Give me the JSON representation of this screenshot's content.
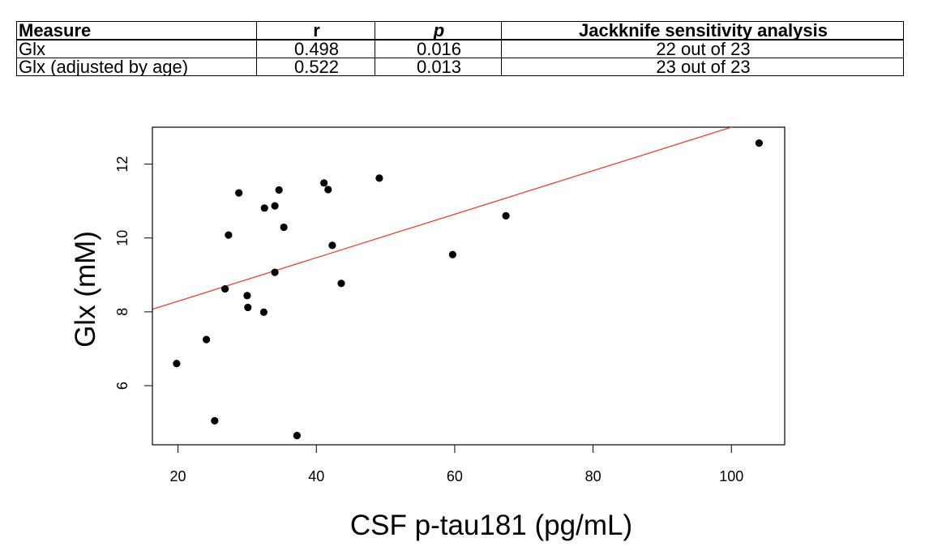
{
  "table": {
    "headers": [
      "Measure",
      "r",
      "p",
      "Jackknife sensitivity analysis"
    ],
    "rows": [
      [
        "Glx",
        "0.498",
        "0.016",
        "22 out of 23"
      ],
      [
        "Glx (adjusted by age)",
        "0.522",
        "0.013",
        "23 out of 23"
      ]
    ]
  },
  "chart_data": {
    "type": "scatter",
    "title": "",
    "xlabel": "CSF p-tau181 (pg/mL)",
    "ylabel": "Glx (mM)",
    "xlim": [
      16.3,
      107.7
    ],
    "ylim": [
      4.4,
      13.0
    ],
    "xticks": [
      20,
      40,
      60,
      80,
      100
    ],
    "yticks": [
      6,
      8,
      10,
      12
    ],
    "point_color": "#000000",
    "fit_line_color": "#e8432c",
    "fit_line": {
      "intercept": 7.11,
      "slope": 0.0589
    },
    "points": [
      {
        "x": 19.8,
        "y": 6.6
      },
      {
        "x": 24.1,
        "y": 7.25
      },
      {
        "x": 25.3,
        "y": 5.05
      },
      {
        "x": 26.8,
        "y": 8.62
      },
      {
        "x": 27.3,
        "y": 10.08
      },
      {
        "x": 28.8,
        "y": 11.22
      },
      {
        "x": 30.0,
        "y": 8.44
      },
      {
        "x": 30.1,
        "y": 8.12
      },
      {
        "x": 32.4,
        "y": 7.99
      },
      {
        "x": 32.5,
        "y": 10.81
      },
      {
        "x": 34.0,
        "y": 10.87
      },
      {
        "x": 34.0,
        "y": 9.07
      },
      {
        "x": 34.6,
        "y": 11.3
      },
      {
        "x": 35.3,
        "y": 10.29
      },
      {
        "x": 37.2,
        "y": 4.65
      },
      {
        "x": 41.1,
        "y": 11.49
      },
      {
        "x": 41.7,
        "y": 11.31
      },
      {
        "x": 42.3,
        "y": 9.8
      },
      {
        "x": 43.6,
        "y": 8.77
      },
      {
        "x": 49.1,
        "y": 11.62
      },
      {
        "x": 59.7,
        "y": 9.55
      },
      {
        "x": 67.4,
        "y": 10.6
      },
      {
        "x": 104.0,
        "y": 12.57
      }
    ]
  }
}
